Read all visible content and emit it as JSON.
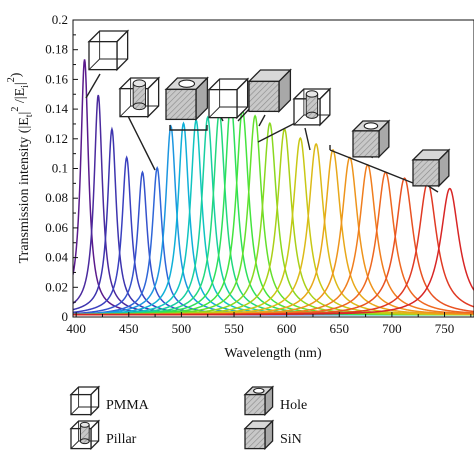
{
  "chart_data": {
    "type": "line",
    "xlabel": "Wavelength (nm)",
    "ylabel": "Transmission intensity (|E_t|^2/|E_i|^2)",
    "ylabel_parts": [
      "Transmission intensity (|E",
      "t",
      "|",
      "2",
      " /|E",
      "i",
      "|",
      "2",
      ")"
    ],
    "xlim": [
      397,
      778
    ],
    "ylim": [
      0,
      0.2
    ],
    "xticks": [
      400,
      450,
      500,
      550,
      600,
      650,
      700,
      750
    ],
    "xtick_labels": [
      "400",
      "450",
      "500",
      "550",
      "600",
      "650",
      "700",
      "750"
    ],
    "yticks": [
      0,
      0.02,
      0.04,
      0.06,
      0.08,
      0.1,
      0.12,
      0.14,
      0.16,
      0.18,
      0.2
    ],
    "ytick_labels": [
      "0",
      "0.02",
      "0.04",
      "0.06",
      "0.08",
      "0.1",
      "0.12",
      "0.14",
      "0.16",
      "0.18",
      "0.2"
    ],
    "grid": false,
    "series": [
      {
        "peak_nm": 408,
        "peak": 0.169,
        "width_nm": 4.5,
        "color": "#5a1a8c"
      },
      {
        "peak_nm": 421,
        "peak": 0.145,
        "width_nm": 4.8,
        "color": "#4a2a9e"
      },
      {
        "peak_nm": 434,
        "peak": 0.122,
        "width_nm": 5.0,
        "color": "#3d34ae"
      },
      {
        "peak_nm": 448,
        "peak": 0.103,
        "width_nm": 5.2,
        "color": "#3a40bf"
      },
      {
        "peak_nm": 463,
        "peak": 0.093,
        "width_nm": 5.4,
        "color": "#3552cc"
      },
      {
        "peak_nm": 477,
        "peak": 0.096,
        "width_nm": 5.5,
        "color": "#2f66d8"
      },
      {
        "peak_nm": 490,
        "peak": 0.124,
        "width_nm": 6.0,
        "color": "#1c96e0"
      },
      {
        "peak_nm": 502,
        "peak": 0.126,
        "width_nm": 6.2,
        "color": "#10b0d8"
      },
      {
        "peak_nm": 514,
        "peak": 0.128,
        "width_nm": 6.4,
        "color": "#10c4c0"
      },
      {
        "peak_nm": 525,
        "peak": 0.13,
        "width_nm": 6.6,
        "color": "#18cfa0"
      },
      {
        "peak_nm": 536,
        "peak": 0.133,
        "width_nm": 6.8,
        "color": "#22d87e"
      },
      {
        "peak_nm": 547,
        "peak": 0.14,
        "width_nm": 7.0,
        "color": "#2ee05a"
      },
      {
        "peak_nm": 558,
        "peak": 0.135,
        "width_nm": 7.2,
        "color": "#44e43e"
      },
      {
        "peak_nm": 570,
        "peak": 0.131,
        "width_nm": 7.5,
        "color": "#64e02c"
      },
      {
        "peak_nm": 584,
        "peak": 0.126,
        "width_nm": 7.8,
        "color": "#8ad820"
      },
      {
        "peak_nm": 598,
        "peak": 0.122,
        "width_nm": 8.0,
        "color": "#aad018"
      },
      {
        "peak_nm": 613,
        "peak": 0.116,
        "width_nm": 8.3,
        "color": "#c8c815"
      },
      {
        "peak_nm": 628,
        "peak": 0.112,
        "width_nm": 8.6,
        "color": "#dcba18"
      },
      {
        "peak_nm": 644,
        "peak": 0.108,
        "width_nm": 8.9,
        "color": "#e8a81a"
      },
      {
        "peak_nm": 660,
        "peak": 0.103,
        "width_nm": 9.2,
        "color": "#ee941c"
      },
      {
        "peak_nm": 677,
        "peak": 0.098,
        "width_nm": 9.5,
        "color": "#f07e1e"
      },
      {
        "peak_nm": 694,
        "peak": 0.093,
        "width_nm": 9.8,
        "color": "#ee6820"
      },
      {
        "peak_nm": 712,
        "peak": 0.089,
        "width_nm": 10.0,
        "color": "#e85222"
      },
      {
        "peak_nm": 734,
        "peak": 0.086,
        "width_nm": 10.3,
        "color": "#e03a24"
      },
      {
        "peak_nm": 755,
        "peak": 0.082,
        "width_nm": 10.6,
        "color": "#d82626"
      }
    ],
    "legend": [
      {
        "label": "PMMA",
        "icon": "pmma-cube-icon"
      },
      {
        "label": "Pillar",
        "icon": "pillar-cube-icon"
      },
      {
        "label": "Hole",
        "icon": "hole-cube-icon"
      },
      {
        "label": "SiN",
        "icon": "sin-cube-icon"
      }
    ],
    "annotations": [
      {
        "icon": "pmma-cube-icon"
      },
      {
        "icon": "pillar-cube-icon"
      },
      {
        "icon": "sin-cube-icon"
      },
      {
        "icon": "hole-cube-icon"
      },
      {
        "icon": "pmma-cube-icon"
      },
      {
        "icon": "sin-cube-icon"
      },
      {
        "icon": "pillar-cube-icon"
      },
      {
        "icon": "hole-cube-icon"
      },
      {
        "icon": "sin-cube-icon"
      }
    ]
  }
}
